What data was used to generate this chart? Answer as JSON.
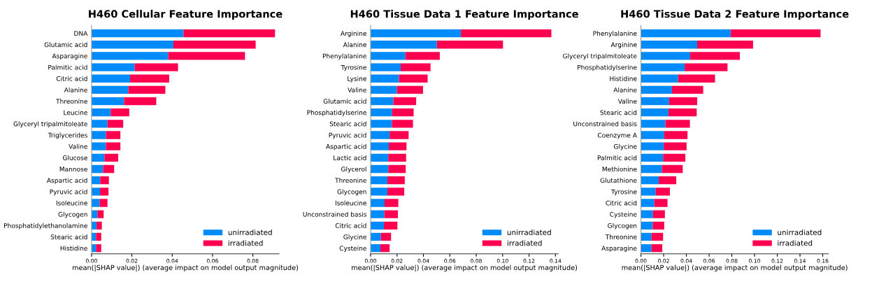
{
  "chart_data": [
    {
      "type": "bar",
      "orientation": "horizontal",
      "stacked": true,
      "title": "H460 Cellular Feature Importance",
      "xlabel": "mean(|SHAP value|) (average impact on model output magnitude)",
      "categories": [
        "DNA",
        "Glutamic acid",
        "Asparagine",
        "Palmitic acid",
        "Citric acid",
        "Alanine",
        "Threonine",
        "Leucine",
        "Glyceryl tripalmitoleate",
        "Triglycerides",
        "Valine",
        "Glucose",
        "Mannose",
        "Aspartic acid",
        "Pyruvic acid",
        "Isoleucine",
        "Glycogen",
        "Phosphatidylethanolamine",
        "Stearic acid",
        "Histidine"
      ],
      "series": [
        {
          "name": "unirradiated",
          "color": "#008bfb",
          "values": [
            0.0456,
            0.0406,
            0.038,
            0.0214,
            0.0191,
            0.0182,
            0.0161,
            0.0095,
            0.0079,
            0.0071,
            0.0071,
            0.0064,
            0.0057,
            0.0043,
            0.0042,
            0.004,
            0.0029,
            0.0025,
            0.0022,
            0.0022
          ]
        },
        {
          "name": "irradiated",
          "color": "#ff0051",
          "values": [
            0.0454,
            0.0408,
            0.0381,
            0.0215,
            0.0194,
            0.0184,
            0.016,
            0.0092,
            0.0078,
            0.0072,
            0.0072,
            0.0068,
            0.0055,
            0.0043,
            0.0042,
            0.0039,
            0.0031,
            0.0026,
            0.0026,
            0.0026
          ]
        }
      ],
      "xlim": [
        0,
        0.093
      ],
      "xticks": [
        {
          "value": 0,
          "label": "0.00"
        },
        {
          "value": 0.02,
          "label": "0.02"
        },
        {
          "value": 0.04,
          "label": "0.04"
        },
        {
          "value": 0.06,
          "label": "0.06"
        },
        {
          "value": 0.08,
          "label": "0.08"
        }
      ],
      "legend": "bottom right",
      "grid": false
    },
    {
      "type": "bar",
      "orientation": "horizontal",
      "stacked": true,
      "title": "H460 Tissue Data 1 Feature Importance",
      "xlabel": "mean(|SHAP value|) (average impact on model output magnitude)",
      "categories": [
        "Arginine",
        "Alanine",
        "Phenylalanine",
        "Tyrosine",
        "Lysine",
        "Valine",
        "Glutamic acid",
        "Phosphatidylserine",
        "Stearic acid",
        "Pyruvic acid",
        "Aspartic acid",
        "Lactic acid",
        "Glycerol",
        "Threonine",
        "Glycogen",
        "Isoleucine",
        "Unconstrained basis",
        "Citric acid",
        "Glycine",
        "Cysteine"
      ],
      "series": [
        {
          "name": "unirradiated",
          "color": "#008bfb",
          "values": [
            0.0684,
            0.0502,
            0.0263,
            0.0228,
            0.0215,
            0.0199,
            0.0172,
            0.0163,
            0.0161,
            0.0144,
            0.0138,
            0.0134,
            0.0134,
            0.0127,
            0.0127,
            0.0106,
            0.0104,
            0.0101,
            0.0078,
            0.0074
          ]
        },
        {
          "name": "irradiated",
          "color": "#ff0051",
          "values": [
            0.0685,
            0.0501,
            0.0261,
            0.0226,
            0.0217,
            0.0198,
            0.0173,
            0.0163,
            0.016,
            0.0144,
            0.0134,
            0.0135,
            0.0132,
            0.0132,
            0.0128,
            0.0104,
            0.0103,
            0.0102,
            0.0077,
            0.007
          ]
        }
      ],
      "xlim": [
        0,
        0.142
      ],
      "xticks": [
        {
          "value": 0,
          "label": "0.00"
        },
        {
          "value": 0.02,
          "label": "0.02"
        },
        {
          "value": 0.04,
          "label": "0.04"
        },
        {
          "value": 0.06,
          "label": "0.06"
        },
        {
          "value": 0.08,
          "label": "0.08"
        },
        {
          "value": 0.1,
          "label": "0.10"
        },
        {
          "value": 0.12,
          "label": "0.12"
        },
        {
          "value": 0.14,
          "label": "0.14"
        }
      ],
      "legend": "bottom right",
      "grid": false
    },
    {
      "type": "bar",
      "orientation": "horizontal",
      "stacked": true,
      "title": "H460 Tissue Data 2 Feature Importance",
      "xlabel": "mean(|SHAP value|) (average impact on model output magnitude)",
      "categories": [
        "Phenylalanine",
        "Arginine",
        "Glyceryl tripalmitoleate",
        "Phosphatidylserine",
        "Histidine",
        "Alanine",
        "Valine",
        "Stearic acid",
        "Unconstrained basis",
        "Coenzyme A",
        "Glycine",
        "Palmitic acid",
        "Methionine",
        "Glutathione",
        "Tyrosine",
        "Citric acid",
        "Cysteine",
        "Glycogen",
        "Threonine",
        "Asparagine"
      ],
      "series": [
        {
          "name": "unirradiated",
          "color": "#008bfb",
          "values": [
            0.0789,
            0.0495,
            0.0433,
            0.0385,
            0.0327,
            0.0273,
            0.0248,
            0.0242,
            0.0215,
            0.0205,
            0.0201,
            0.0195,
            0.0184,
            0.0157,
            0.013,
            0.0118,
            0.0106,
            0.0104,
            0.0093,
            0.0093
          ]
        },
        {
          "name": "irradiated",
          "color": "#ff0051",
          "values": [
            0.0792,
            0.0492,
            0.0438,
            0.0377,
            0.0325,
            0.0275,
            0.0247,
            0.0249,
            0.0216,
            0.0205,
            0.0201,
            0.0196,
            0.0184,
            0.0154,
            0.0125,
            0.0116,
            0.0105,
            0.0101,
            0.0102,
            0.0095
          ]
        }
      ],
      "xlim": [
        0,
        0.165
      ],
      "xticks": [
        {
          "value": 0,
          "label": "0.00"
        },
        {
          "value": 0.02,
          "label": "0.02"
        },
        {
          "value": 0.04,
          "label": "0.04"
        },
        {
          "value": 0.06,
          "label": "0.06"
        },
        {
          "value": 0.08,
          "label": "0.08"
        },
        {
          "value": 0.1,
          "label": "0.10"
        },
        {
          "value": 0.12,
          "label": "0.12"
        },
        {
          "value": 0.14,
          "label": "0.14"
        },
        {
          "value": 0.16,
          "label": "0.16"
        }
      ],
      "legend": "bottom right",
      "grid": false
    }
  ]
}
